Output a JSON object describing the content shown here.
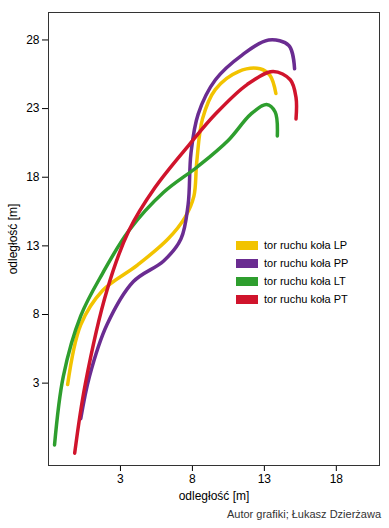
{
  "chart_data": {
    "type": "line",
    "x_label": "odległość [m]",
    "y_label": "odległość [m]",
    "caption": "Autor grafiki; Łukasz Dzierżawa",
    "xlim": [
      -2,
      21
    ],
    "ylim": [
      -3,
      30
    ],
    "xticks": [
      3,
      8,
      13,
      18
    ],
    "yticks": [
      3,
      8,
      13,
      18,
      23,
      28
    ],
    "grid": false,
    "legend": "right",
    "series": [
      {
        "name": "tor ruchu koła LP",
        "color": "#f2c300",
        "x": [
          -0.67,
          0.24,
          1.76,
          4.18,
          6.3,
          7.5,
          8.1,
          8.3,
          8.7,
          9.6,
          11.2,
          12.7,
          13.4,
          13.8
        ],
        "values": [
          2.9,
          7.25,
          9.75,
          11.6,
          13.5,
          15.1,
          16.6,
          19.1,
          22.25,
          24.4,
          25.7,
          25.9,
          25.4,
          24.1
        ]
      },
      {
        "name": "tor ruchu koła PP",
        "color": "#6a2c91",
        "x": [
          0.24,
          0.85,
          2.06,
          3.9,
          6.0,
          7.2,
          7.7,
          7.9,
          8.4,
          9.6,
          11.45,
          13.3,
          14.7,
          15.1
        ],
        "values": [
          0.4,
          3.5,
          7.25,
          10.4,
          11.9,
          13.5,
          16,
          19.75,
          22.6,
          25.1,
          26.9,
          28,
          27.6,
          25.9
        ]
      },
      {
        "name": "tor ruchu koła LT",
        "color": "#2e9e2e",
        "x": [
          -1.58,
          -0.97,
          0.24,
          1.76,
          3.58,
          6.0,
          8.4,
          10.5,
          12.06,
          13.15,
          13.75,
          13.9
        ],
        "values": [
          -1.5,
          3.5,
          7.9,
          11,
          14.1,
          16.9,
          18.8,
          20.7,
          22.6,
          23.3,
          22.75,
          21
        ]
      },
      {
        "name": "tor ruchu koła PT",
        "color": "#d0142c",
        "x": [
          -0.18,
          0.55,
          2.06,
          3.58,
          5.4,
          7.8,
          9.6,
          11.8,
          13.6,
          14.8,
          15.2,
          15.2
        ],
        "values": [
          -2.1,
          2.9,
          9.75,
          14.1,
          17.25,
          20.4,
          22.6,
          24.75,
          25.7,
          25.1,
          23.8,
          22.25
        ]
      }
    ]
  }
}
